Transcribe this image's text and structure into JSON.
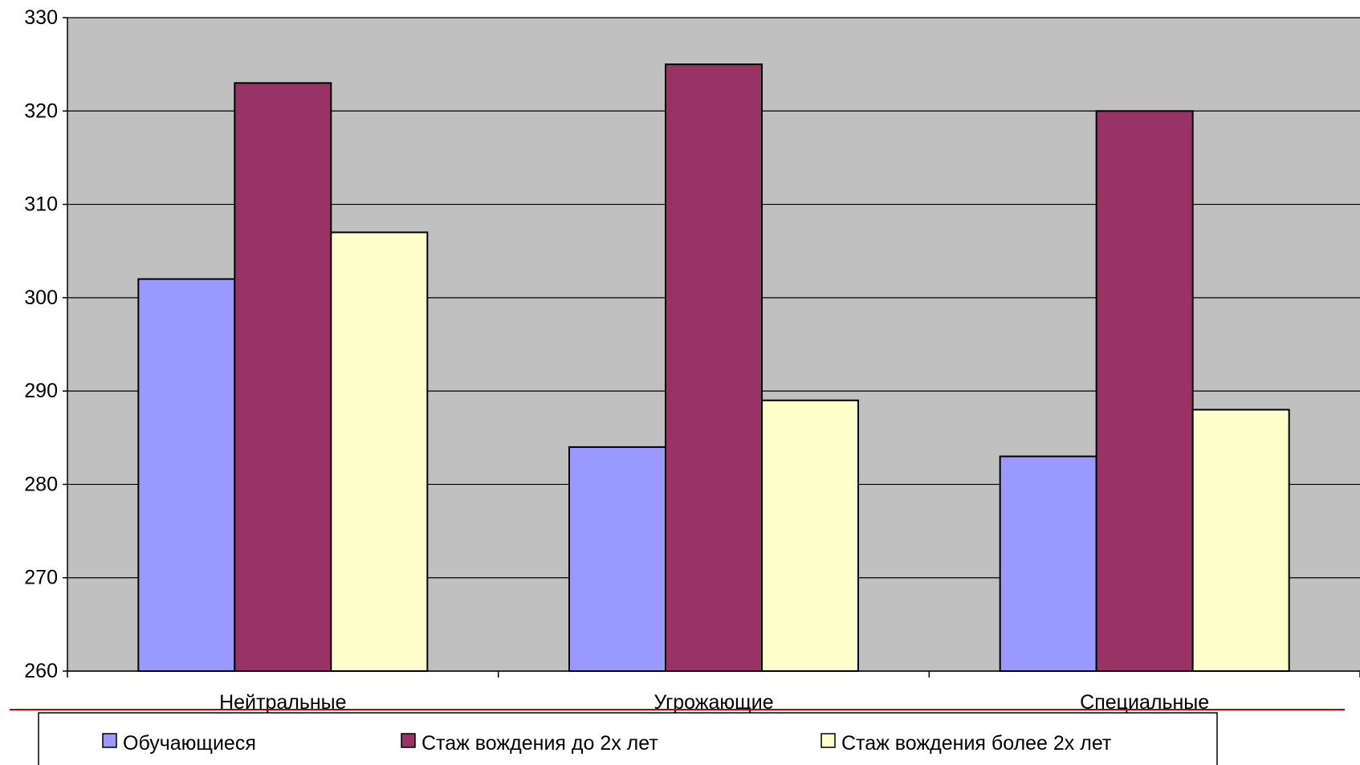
{
  "chart_data": {
    "type": "bar",
    "categories": [
      "Нейтральные",
      "Угрожающие",
      "Специальные"
    ],
    "series": [
      {
        "name": "Обучающиеся",
        "values": [
          302,
          284,
          283
        ],
        "color": "#9999ff"
      },
      {
        "name": "Стаж вождения до 2х лет",
        "values": [
          323,
          325,
          320
        ],
        "color": "#993366"
      },
      {
        "name": "Стаж вождения более 2х лет",
        "values": [
          307,
          289,
          288
        ],
        "color": "#ffffcc"
      }
    ],
    "yticks": [
      260,
      270,
      280,
      290,
      300,
      310,
      320,
      330
    ],
    "ylim": [
      260,
      330
    ],
    "grid": true,
    "legend_position": "bottom",
    "title": "",
    "xlabel": "",
    "ylabel": ""
  },
  "colors": {
    "plot_background": "#c0c0c0",
    "gridline": "#000000",
    "bar_outline": "#000000",
    "separator_line": "#c00000"
  }
}
